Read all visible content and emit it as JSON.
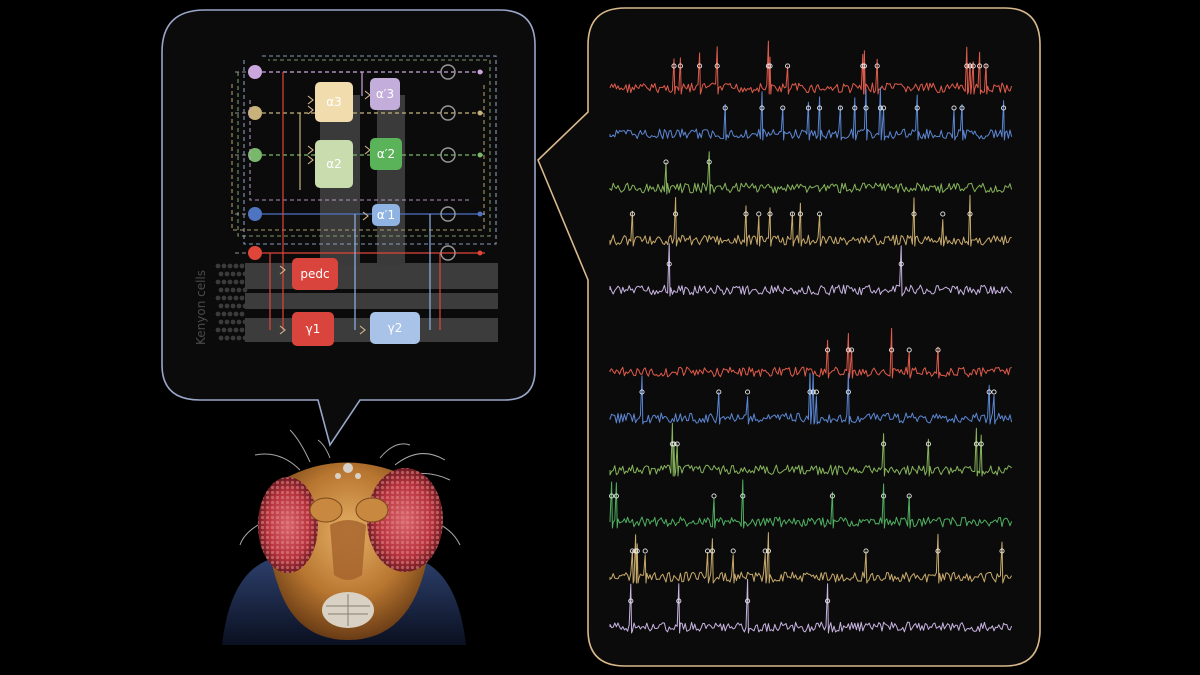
{
  "diagram": {
    "kenyon_label": "Kenyon cells",
    "compartments": [
      {
        "id": "a3",
        "label": "α3",
        "color": "#f1dcae"
      },
      {
        "id": "ap3",
        "label": "α′3",
        "color": "#c3addb"
      },
      {
        "id": "a2",
        "label": "α2",
        "color": "#c8dcae"
      },
      {
        "id": "ap2",
        "label": "α′2",
        "color": "#5ab358"
      },
      {
        "id": "ap1",
        "label": "α′1",
        "color": "#8fb3e2"
      },
      {
        "id": "pedc",
        "label": "pedc",
        "color": "#d9453c"
      },
      {
        "id": "g1",
        "label": "γ1",
        "color": "#d9453c"
      },
      {
        "id": "g2",
        "label": "γ2",
        "color": "#a9c2e8"
      }
    ],
    "input_colors": [
      "#c9a7dc",
      "#c8b27a",
      "#79b86a",
      "#4f74c2",
      "#e0453a"
    ]
  },
  "traces": {
    "rows": [
      {
        "color": "#e05b4b",
        "spike_density": 0.9
      },
      {
        "color": "#5b86d1",
        "spike_density": 0.8
      },
      {
        "color": "#86b35a",
        "spike_density": 0.35
      },
      {
        "color": "#c8aa6b",
        "spike_density": 0.45
      },
      {
        "color": "#c7b3e0",
        "spike_density": 0.25
      },
      {
        "color": "#e05b4b",
        "spike_density": 0.9
      },
      {
        "color": "#5b86d1",
        "spike_density": 1.0
      },
      {
        "color": "#86b35a",
        "spike_density": 0.4
      },
      {
        "color": "#4fae60",
        "spike_density": 0.95
      },
      {
        "color": "#c8aa6b",
        "spike_density": 1.0
      },
      {
        "color": "#c7b3e0",
        "spike_density": 1.0
      }
    ]
  },
  "colors": {
    "panel_border_left": "#9aa6c8",
    "panel_border_right": "#d9b98c",
    "panel_bg": "#0b0b0b"
  },
  "fly_icon": "fruit-fly-head-icon"
}
